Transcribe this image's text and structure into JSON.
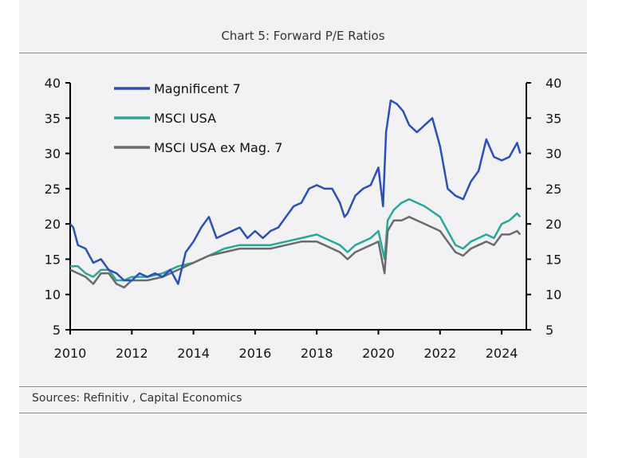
{
  "title": "Chart 5: Forward P/E Ratios",
  "sources": "Sources: Refinitiv , Capital Economics",
  "colors": {
    "mag7": "#2a4fb8",
    "msci": "#2aa897",
    "exmag": "#6b6b6b"
  },
  "chart_data": {
    "type": "line",
    "title": "Chart 5: Forward P/E Ratios",
    "xlabel": "",
    "ylabel": "",
    "xlim": [
      2010,
      2024.8
    ],
    "ylim": [
      5,
      40
    ],
    "xticks": [
      "2010",
      "2012",
      "2014",
      "2016",
      "2018",
      "2020",
      "2022",
      "2024"
    ],
    "yticks": [
      "5",
      "10",
      "15",
      "20",
      "25",
      "30",
      "35",
      "40"
    ],
    "grid": false,
    "legend_position": "top-left",
    "series": [
      {
        "name": "Magnificent 7",
        "color": "#2a4fb8",
        "x": [
          2010,
          2010.1,
          2010.25,
          2010.5,
          2010.75,
          2011,
          2011.25,
          2011.5,
          2011.75,
          2012,
          2012.25,
          2012.5,
          2012.75,
          2013,
          2013.25,
          2013.5,
          2013.75,
          2014,
          2014.25,
          2014.5,
          2014.75,
          2015,
          2015.25,
          2015.5,
          2015.75,
          2016,
          2016.25,
          2016.5,
          2016.75,
          2017,
          2017.25,
          2017.5,
          2017.75,
          2018,
          2018.25,
          2018.5,
          2018.75,
          2018.9,
          2019,
          2019.25,
          2019.5,
          2019.75,
          2020,
          2020.15,
          2020.25,
          2020.4,
          2020.6,
          2020.8,
          2021,
          2021.25,
          2021.5,
          2021.75,
          2022,
          2022.25,
          2022.5,
          2022.75,
          2023,
          2023.25,
          2023.5,
          2023.75,
          2024,
          2024.25,
          2024.5,
          2024.6
        ],
        "values": [
          20,
          19.5,
          17,
          16.5,
          14.5,
          15,
          13.5,
          13,
          12,
          12,
          13,
          12.5,
          13,
          12.5,
          13.5,
          11.5,
          16,
          17.5,
          19.5,
          21,
          18,
          18.5,
          19,
          19.5,
          18,
          19,
          18,
          19,
          19.5,
          21,
          22.5,
          23,
          25,
          25.5,
          25,
          25,
          23,
          21,
          21.5,
          24,
          25,
          25.5,
          28,
          22.5,
          33,
          37.5,
          37,
          36,
          34,
          33,
          34,
          35,
          31,
          25,
          24,
          23.5,
          26,
          27.5,
          32,
          29.5,
          29,
          29.5,
          31.5,
          30
        ]
      },
      {
        "name": "MSCI USA",
        "color": "#2aa897",
        "x": [
          2010,
          2010.25,
          2010.5,
          2010.75,
          2011,
          2011.25,
          2011.5,
          2011.75,
          2012,
          2012.5,
          2013,
          2013.5,
          2014,
          2014.5,
          2015,
          2015.5,
          2016,
          2016.5,
          2017,
          2017.5,
          2018,
          2018.25,
          2018.5,
          2018.75,
          2019,
          2019.25,
          2019.5,
          2019.75,
          2020,
          2020.2,
          2020.3,
          2020.5,
          2020.75,
          2021,
          2021.5,
          2022,
          2022.25,
          2022.5,
          2022.75,
          2023,
          2023.25,
          2023.5,
          2023.75,
          2024,
          2024.25,
          2024.5,
          2024.6
        ],
        "values": [
          14,
          14,
          13,
          12.5,
          13.5,
          13.5,
          12,
          12,
          12.5,
          12.5,
          13,
          14,
          14.5,
          15.5,
          16.5,
          17,
          17,
          17,
          17.5,
          18,
          18.5,
          18,
          17.5,
          17,
          16,
          17,
          17.5,
          18,
          19,
          15,
          20.5,
          22,
          23,
          23.5,
          22.5,
          21,
          19,
          17,
          16.5,
          17.5,
          18,
          18.5,
          18,
          20,
          20.5,
          21.5,
          21
        ]
      },
      {
        "name": "MSCI USA ex Mag. 7",
        "color": "#6b6b6b",
        "x": [
          2010,
          2010.25,
          2010.5,
          2010.75,
          2011,
          2011.25,
          2011.5,
          2011.75,
          2012,
          2012.5,
          2013,
          2013.5,
          2014,
          2014.5,
          2015,
          2015.5,
          2016,
          2016.5,
          2017,
          2017.5,
          2018,
          2018.25,
          2018.5,
          2018.75,
          2019,
          2019.25,
          2019.5,
          2019.75,
          2020,
          2020.2,
          2020.3,
          2020.5,
          2020.75,
          2021,
          2021.5,
          2022,
          2022.25,
          2022.5,
          2022.75,
          2023,
          2023.25,
          2023.5,
          2023.75,
          2024,
          2024.25,
          2024.5,
          2024.6
        ],
        "values": [
          13.5,
          13,
          12.5,
          11.5,
          13,
          13,
          11.5,
          11,
          12,
          12,
          12.5,
          13.5,
          14.5,
          15.5,
          16,
          16.5,
          16.5,
          16.5,
          17,
          17.5,
          17.5,
          17,
          16.5,
          16,
          15,
          16,
          16.5,
          17,
          17.5,
          13,
          19,
          20.5,
          20.5,
          21,
          20,
          19,
          17.5,
          16,
          15.5,
          16.5,
          17,
          17.5,
          17,
          18.5,
          18.5,
          19,
          18.5
        ]
      }
    ]
  }
}
